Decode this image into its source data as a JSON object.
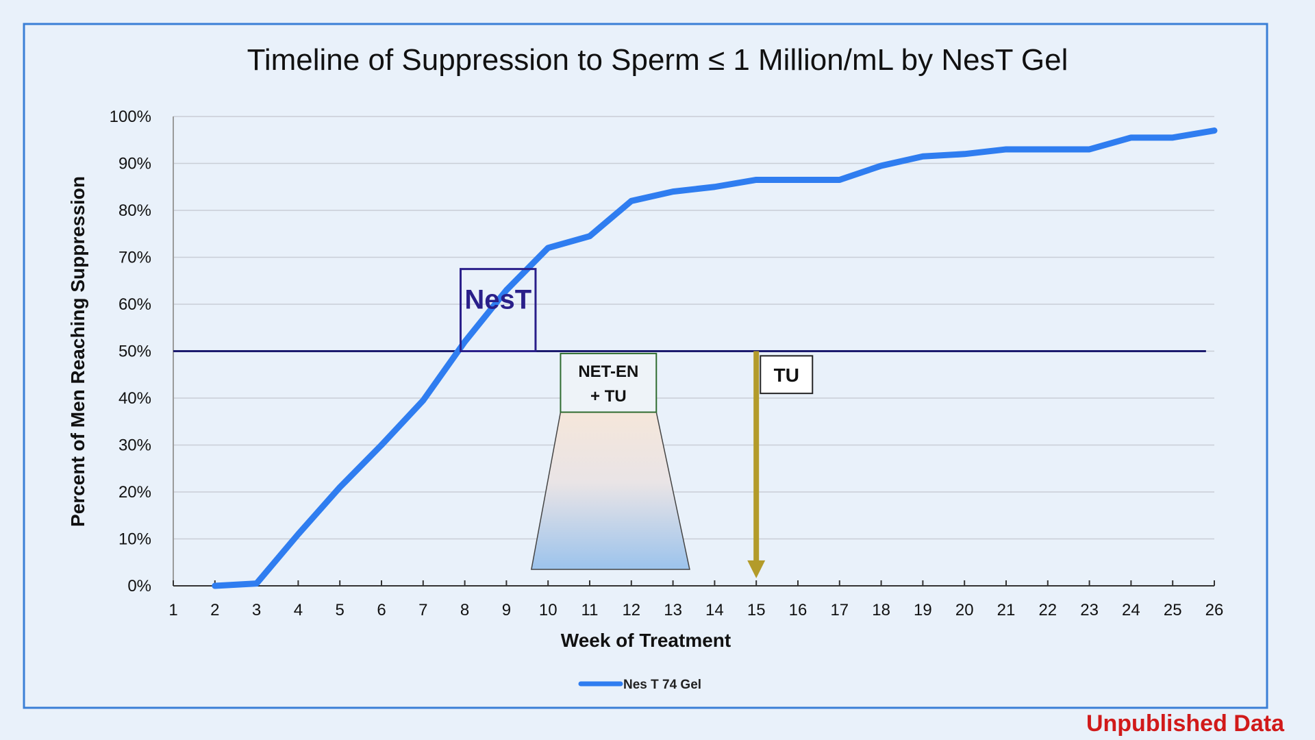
{
  "footer_note": "Unpublished Data",
  "colors": {
    "background": "#e9f1fa",
    "frame": "#3a7fd6",
    "series": "#2f7df0",
    "reference_line": "#1b1b6e",
    "arrow": "#b39b2a",
    "footer": "#d11a1a",
    "nest_box": "#2a1f8a"
  },
  "chart_data": {
    "type": "line",
    "title": "Timeline of Suppression to Sperm ≤ 1 Million/mL by NesT Gel",
    "xlabel": "Week of Treatment",
    "ylabel": "Percent of Men Reaching Suppression",
    "x_ticks": [
      "1",
      "2",
      "3",
      "4",
      "5",
      "6",
      "7",
      "8",
      "9",
      "10",
      "11",
      "12",
      "13",
      "14",
      "15",
      "16",
      "17",
      "18",
      "19",
      "20",
      "21",
      "22",
      "23",
      "24",
      "25",
      "26"
    ],
    "y_ticks": [
      "0%",
      "10%",
      "20%",
      "30%",
      "40%",
      "50%",
      "60%",
      "70%",
      "80%",
      "90%",
      "100%"
    ],
    "xlim": [
      1,
      26
    ],
    "ylim": [
      0,
      100
    ],
    "grid": "horizontal",
    "legend_position": "bottom-center",
    "series": [
      {
        "name": "Nes T 74 Gel",
        "x": [
          2,
          3,
          4,
          5,
          6,
          7,
          8,
          9,
          10,
          11,
          12,
          13,
          14,
          15,
          16,
          17,
          18,
          19,
          20,
          21,
          22,
          23,
          24,
          25,
          26
        ],
        "y": [
          0,
          0.5,
          11,
          21,
          30,
          39.5,
          52,
          63,
          72,
          74.5,
          82,
          84,
          85,
          86.5,
          86.5,
          86.5,
          89.5,
          91.5,
          92,
          93,
          93,
          93,
          95.5,
          95.5,
          97
        ]
      }
    ],
    "reference_line": {
      "y": 50
    },
    "annotations": [
      {
        "id": "nest",
        "text": "NesT",
        "x_from": 7.9,
        "x_to": 9.7,
        "y_from": 50,
        "y_to": 67.5
      },
      {
        "id": "net-en",
        "lines": [
          "NET-EN",
          "+ TU"
        ],
        "x_from": 10.3,
        "x_to": 12.6,
        "y_from": 37,
        "y_to": 49.5,
        "trapezoid_bottom_x": [
          9.6,
          13.4
        ],
        "trapezoid_bottom_y": 3.5
      },
      {
        "id": "tu",
        "text": "TU",
        "arrow_x": 15,
        "arrow_y_from": 50,
        "arrow_y_to": 2.5,
        "x_from": 15.1,
        "x_to": 16.35,
        "y_from": 41,
        "y_to": 49
      }
    ]
  }
}
